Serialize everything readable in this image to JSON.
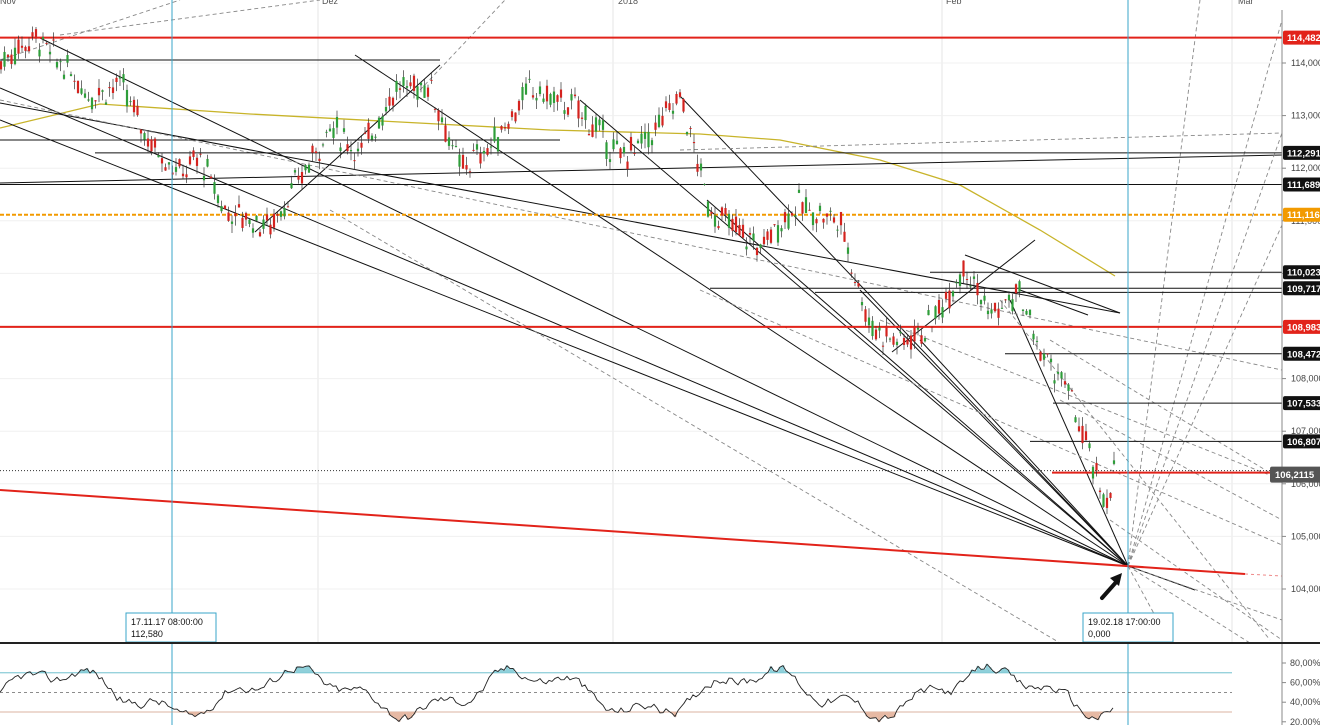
{
  "chart_data": {
    "type": "candlestick",
    "x_ticks": [
      "Nov",
      "Dez",
      "2018",
      "Feb",
      "Mär"
    ],
    "y_ticks": [
      "114,000",
      "113,000",
      "112,000",
      "111,000",
      "110,000",
      "109,000",
      "108,000",
      "107,000",
      "106,000",
      "105,000",
      "104,000"
    ],
    "ylim": [
      103.0,
      115.6
    ],
    "horizontal_levels": [
      {
        "label": "114,482",
        "value": 114.482,
        "color": "#e2231a",
        "tag": "red"
      },
      {
        "label": "112,291",
        "value": 112.291,
        "color": "#111111",
        "tag": "black"
      },
      {
        "label": "111,689",
        "value": 111.689,
        "color": "#111111",
        "tag": "black"
      },
      {
        "label": "111,116",
        "value": 111.116,
        "color": "#f29a00",
        "tag": "orange"
      },
      {
        "label": "110,023",
        "value": 110.023,
        "color": "#111111",
        "tag": "black"
      },
      {
        "label": "109,717",
        "value": 109.717,
        "color": "#111111",
        "tag": "black"
      },
      {
        "label": "108,983",
        "value": 108.983,
        "color": "#e2231a",
        "tag": "red"
      },
      {
        "label": "108,472",
        "value": 108.472,
        "color": "#111111",
        "tag": "black"
      },
      {
        "label": "107,533",
        "value": 107.533,
        "color": "#111111",
        "tag": "black"
      },
      {
        "label": "106,807",
        "value": 106.807,
        "color": "#111111",
        "tag": "black"
      }
    ],
    "current_price": {
      "label": "106,2115",
      "value": 106.2115,
      "color": "#555555"
    },
    "crosshair_boxes": [
      {
        "date": "17.11.17 08:00:00",
        "value": "112,580"
      },
      {
        "date": "19.02.18 17:00:00",
        "value": "0,000"
      }
    ],
    "price_path": [
      {
        "i": 0,
        "v": 114.0
      },
      {
        "i": 18,
        "v": 114.3
      },
      {
        "i": 36,
        "v": 114.5
      },
      {
        "i": 60,
        "v": 114.0
      },
      {
        "i": 90,
        "v": 113.4
      },
      {
        "i": 120,
        "v": 113.6
      },
      {
        "i": 150,
        "v": 112.5
      },
      {
        "i": 180,
        "v": 111.9
      },
      {
        "i": 200,
        "v": 112.2
      },
      {
        "i": 225,
        "v": 111.2
      },
      {
        "i": 270,
        "v": 110.9
      },
      {
        "i": 300,
        "v": 111.8
      },
      {
        "i": 330,
        "v": 112.8
      },
      {
        "i": 360,
        "v": 112.3
      },
      {
        "i": 395,
        "v": 113.5
      },
      {
        "i": 430,
        "v": 113.6
      },
      {
        "i": 460,
        "v": 112.0
      },
      {
        "i": 490,
        "v": 112.4
      },
      {
        "i": 530,
        "v": 113.5
      },
      {
        "i": 580,
        "v": 113.1
      },
      {
        "i": 620,
        "v": 112.2
      },
      {
        "i": 650,
        "v": 112.6
      },
      {
        "i": 680,
        "v": 113.4
      },
      {
        "i": 710,
        "v": 111.2
      },
      {
        "i": 760,
        "v": 110.5
      },
      {
        "i": 795,
        "v": 111.3
      },
      {
        "i": 840,
        "v": 111.0
      },
      {
        "i": 870,
        "v": 109.0
      },
      {
        "i": 900,
        "v": 108.7
      },
      {
        "i": 930,
        "v": 109.0
      },
      {
        "i": 965,
        "v": 110.2
      },
      {
        "i": 990,
        "v": 109.2
      },
      {
        "i": 1020,
        "v": 109.6
      },
      {
        "i": 1040,
        "v": 108.5
      },
      {
        "i": 1065,
        "v": 107.9
      },
      {
        "i": 1085,
        "v": 106.8
      },
      {
        "i": 1105,
        "v": 105.6
      },
      {
        "i": 1115,
        "v": 106.3
      }
    ],
    "oscillator": {
      "ticks": [
        "80,00%",
        "60,00%",
        "40,00%",
        "20,00%"
      ],
      "ylim": [
        18,
        92
      ],
      "upper": 70,
      "mid": 50,
      "lower": 30
    }
  }
}
